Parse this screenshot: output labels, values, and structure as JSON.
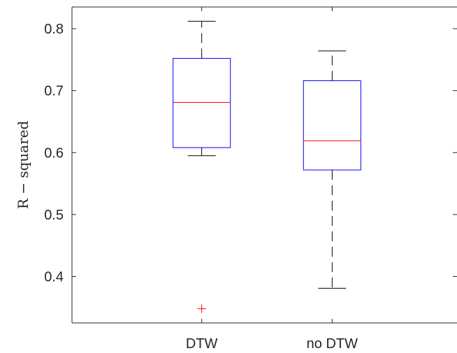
{
  "chart_data": {
    "type": "box",
    "title": "",
    "xlabel": "",
    "ylabel": "R − squared",
    "ylim": [
      0.325,
      0.835
    ],
    "yticks": [
      0.4,
      0.5,
      0.6,
      0.7,
      0.8
    ],
    "ytick_labels": [
      "0.4",
      "0.5",
      "0.6",
      "0.7",
      "0.8"
    ],
    "grid": false,
    "categories": [
      "DTW",
      "no DTW"
    ],
    "boxes": [
      {
        "category": "DTW",
        "whisker_low": 0.595,
        "q1": 0.608,
        "median": 0.681,
        "q3": 0.752,
        "whisker_high": 0.812,
        "outliers": [
          0.348
        ]
      },
      {
        "category": "no DTW",
        "whisker_low": 0.381,
        "q1": 0.572,
        "median": 0.619,
        "q3": 0.716,
        "whisker_high": 0.764,
        "outliers": []
      }
    ],
    "colors": {
      "box": "#0000ff",
      "median": "#ff0000",
      "whisker": "#000000",
      "outlier": "#ff0000",
      "axis": "#262626"
    }
  }
}
